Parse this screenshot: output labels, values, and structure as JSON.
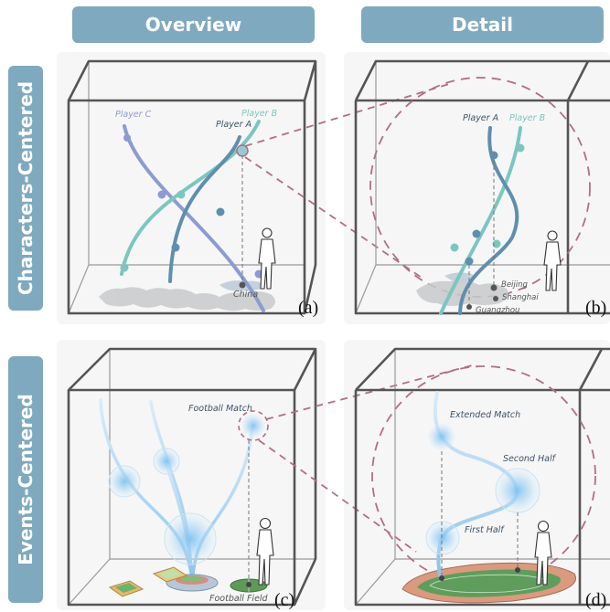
{
  "headers": {
    "overview": "Overview",
    "detail": "Detail"
  },
  "rows": {
    "characters": "Characters-Centered",
    "events": "Events-Centered"
  },
  "panel_a": {
    "tag": "(a)",
    "player_c": "Player C",
    "player_a": "Player A",
    "player_b": "Player B",
    "place": "China"
  },
  "panel_b": {
    "tag": "(b)",
    "player_a": "Player A",
    "player_b": "Player B",
    "beijing": "Beijing",
    "shanghai": "Shanghai",
    "guangzhou": "Guangzhou"
  },
  "panel_c": {
    "tag": "(c)",
    "match": "Football Match",
    "field": "Football Field"
  },
  "panel_d": {
    "tag": "(d)",
    "extended": "Extended Match",
    "second_half": "Second Half",
    "first_half": "First Half"
  },
  "colors": {
    "header": "#7fa9be",
    "box": "#555555",
    "player_a": "#5f8fae",
    "player_b": "#7cc6c0",
    "player_c": "#8d9bd2",
    "highlight": "#b06f82",
    "event": "#9cc7ea"
  }
}
